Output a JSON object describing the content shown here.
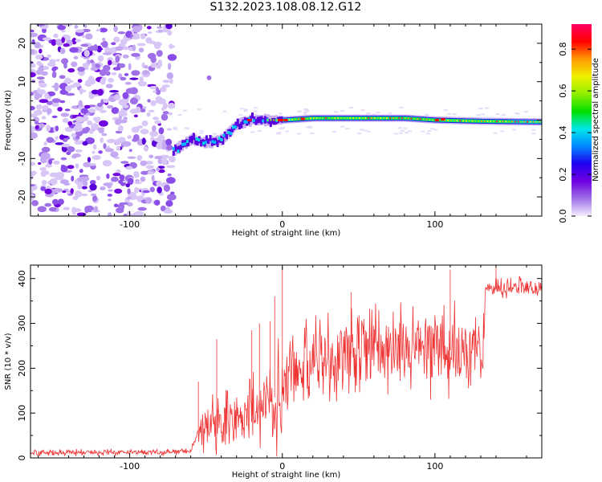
{
  "figure": {
    "title": "S132.2023.108.08.12.G12"
  },
  "chart_data": [
    {
      "type": "heatmap",
      "title": "",
      "xlabel": "Height of straight line (km)",
      "ylabel": "Frequency (Hz)",
      "xlim": [
        -165,
        170
      ],
      "ylim": [
        -25,
        25
      ],
      "xticks": [
        -100,
        0,
        100
      ],
      "yticks": [
        -20,
        -10,
        0,
        10,
        20
      ],
      "colorbar": {
        "label": "Normalized spectral amplitude",
        "range": [
          0.0,
          0.92
        ],
        "ticks": [
          0.0,
          0.2,
          0.4,
          0.6,
          0.8
        ],
        "colors": [
          "#f4f0fc",
          "#a070e8",
          "#7000e0",
          "#2000f0",
          "#0088ff",
          "#00e8e8",
          "#00e000",
          "#90ee00",
          "#f0f000",
          "#ff9900",
          "#ff0000",
          "#ff0066"
        ]
      },
      "features": [
        {
          "name": "noise",
          "x_range": [
            -165,
            -72
          ],
          "y_range": [
            -25,
            25
          ],
          "amplitude": 0.1
        },
        {
          "name": "signal",
          "x": [
            -72,
            -60,
            -50,
            -40,
            -30,
            -20,
            -10,
            0,
            20,
            50,
            80,
            100,
            130,
            170
          ],
          "y": [
            -8,
            -5,
            -6,
            -5,
            -1,
            0,
            0,
            0,
            0.5,
            0.5,
            0.5,
            0,
            -0.3,
            -0.5
          ]
        }
      ]
    },
    {
      "type": "line",
      "title": "",
      "xlabel": "Height of straight line (km)",
      "ylabel": "SNR (10 * v/v)",
      "xlim": [
        -165,
        170
      ],
      "ylim": [
        0,
        430
      ],
      "xticks": [
        -100,
        0,
        100
      ],
      "yticks": [
        0,
        100,
        200,
        300,
        400
      ],
      "series": [
        {
          "color": "#ee3333",
          "x": [
            -165,
            -140,
            -120,
            -100,
            -80,
            -60,
            -55,
            -50,
            -40,
            -30,
            -20,
            -10,
            0,
            10,
            20,
            30,
            50,
            70,
            90,
            110,
            120,
            132,
            133,
            150,
            170
          ],
          "y": [
            10,
            12,
            12,
            12,
            13,
            15,
            60,
            70,
            75,
            80,
            95,
            120,
            150,
            190,
            215,
            225,
            235,
            240,
            240,
            240,
            240,
            240,
            375,
            380,
            380
          ]
        }
      ]
    }
  ]
}
